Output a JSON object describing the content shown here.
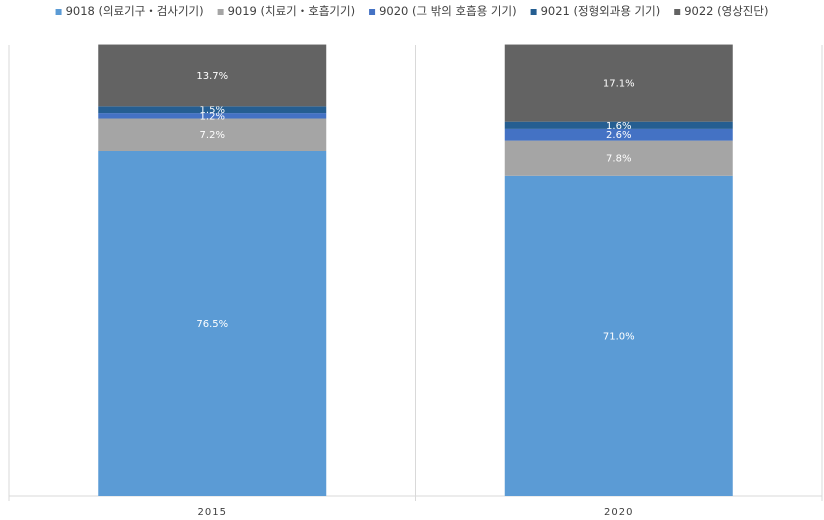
{
  "chart_data": {
    "type": "bar",
    "stacked": true,
    "percent_stacked": true,
    "categories": [
      "2015",
      "2020"
    ],
    "series": [
      {
        "name": "9018 (의료기구・검사기기)",
        "values": [
          76.5,
          71.0
        ],
        "labels": [
          "76.5%",
          "71.0%"
        ],
        "color": "#5b9bd5"
      },
      {
        "name": "9019 (치료기・호흡기기)",
        "values": [
          7.2,
          7.8
        ],
        "labels": [
          "7.2%",
          "7.8%"
        ],
        "color": "#a5a5a5"
      },
      {
        "name": "9020 (그 밖의 호흡용 기기)",
        "values": [
          1.2,
          2.6
        ],
        "labels": [
          "1.2%",
          "2.6%"
        ],
        "color": "#4472c4"
      },
      {
        "name": "9021 (정형외과용 기기)",
        "values": [
          1.5,
          1.6
        ],
        "labels": [
          "1.5%",
          "1.6%"
        ],
        "color": "#255e91"
      },
      {
        "name": "9022 (영상진단)",
        "values": [
          13.7,
          17.1
        ],
        "labels": [
          "13.7%",
          "17.1%"
        ],
        "color": "#636363"
      }
    ],
    "ylim": [
      0,
      100
    ],
    "legend_position": "top",
    "grid": false
  }
}
